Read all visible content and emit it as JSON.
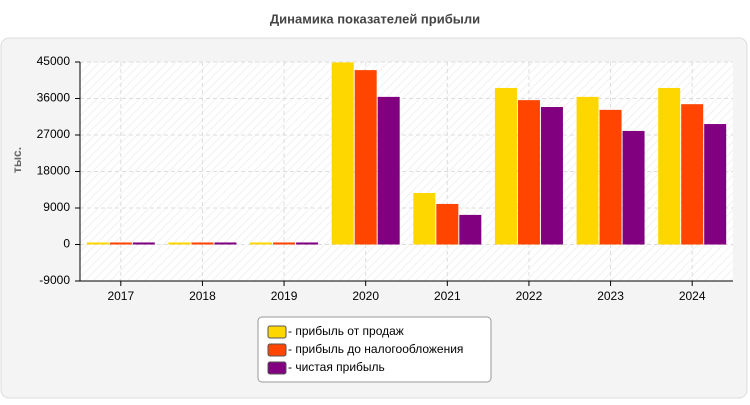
{
  "chart_data": {
    "type": "bar",
    "title": "Динамика показателей прибыли",
    "y_label": "тыс.",
    "categories": [
      "2017",
      "2018",
      "2019",
      "2020",
      "2021",
      "2022",
      "2023",
      "2024"
    ],
    "series": [
      {
        "name": "- прибыль от продаж",
        "color": "#ffd700",
        "values": [
          500,
          500,
          500,
          44900,
          12700,
          38600,
          36400,
          38600
        ]
      },
      {
        "name": "- прибыль до налогообложения",
        "color": "#ff4500",
        "values": [
          500,
          500,
          500,
          43000,
          10000,
          35600,
          33200,
          34600
        ]
      },
      {
        "name": "- чистая прибыль",
        "color": "#800080",
        "values": [
          500,
          500,
          500,
          36400,
          7300,
          33900,
          28000,
          29700
        ]
      }
    ],
    "ylim": [
      -9000,
      45000
    ],
    "yticks": [
      -9000,
      0,
      9000,
      18000,
      27000,
      36000,
      45000
    ],
    "grid": true
  }
}
